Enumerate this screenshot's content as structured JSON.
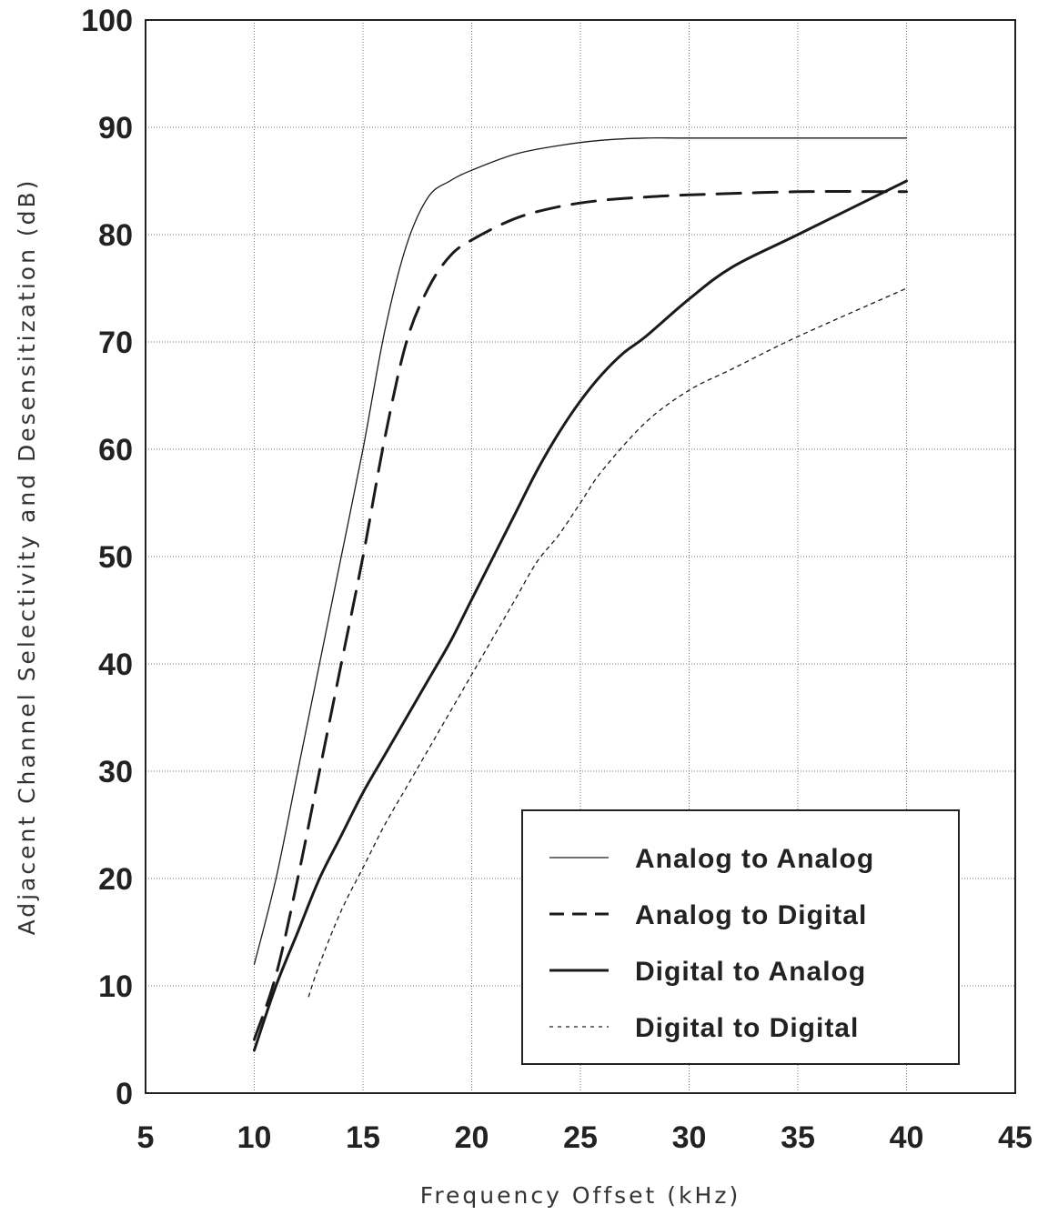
{
  "chart_data": {
    "type": "line",
    "title": "",
    "xlabel": "Frequency Offset (kHz)",
    "ylabel": "Adjacent Channel Selectivity and Desensitization (dB)",
    "xlim": [
      5,
      45
    ],
    "ylim": [
      0,
      100
    ],
    "x_ticks": [
      5,
      10,
      15,
      20,
      25,
      30,
      35,
      40,
      45
    ],
    "y_ticks": [
      0,
      10,
      20,
      30,
      40,
      50,
      60,
      70,
      80,
      90,
      100
    ],
    "grid": true,
    "legend_position": "bottom-right",
    "series": [
      {
        "name": "Analog to Analog",
        "style": "thin-solid",
        "x": [
          10,
          11,
          12,
          13,
          14,
          15,
          16,
          17,
          18,
          19,
          20,
          22,
          24,
          26,
          28,
          30,
          35,
          40
        ],
        "y": [
          12,
          20,
          30,
          40,
          50,
          60,
          71,
          79,
          83.5,
          85,
          86,
          87.5,
          88.3,
          88.8,
          89,
          89,
          89,
          89
        ]
      },
      {
        "name": "Analog to Digital",
        "style": "dashed",
        "x": [
          10,
          11,
          12,
          13,
          14,
          15,
          16,
          17,
          18,
          19,
          20,
          22,
          24,
          26,
          28,
          30,
          35,
          40
        ],
        "y": [
          5,
          11,
          20,
          30,
          40,
          50,
          61,
          70,
          75,
          78,
          79.5,
          81.5,
          82.6,
          83.2,
          83.5,
          83.7,
          84,
          84
        ]
      },
      {
        "name": "Digital to Analog",
        "style": "thick-solid",
        "x": [
          10,
          11,
          12,
          13,
          14,
          15,
          16,
          17,
          18,
          19,
          20,
          21,
          22,
          23,
          24,
          25,
          26,
          27,
          28,
          30,
          32,
          35,
          40
        ],
        "y": [
          4,
          10,
          15,
          20,
          24,
          28,
          31.5,
          35,
          38.5,
          42,
          46,
          50,
          54,
          58,
          61.5,
          64.5,
          67,
          69,
          70.5,
          74,
          77,
          80,
          85
        ]
      },
      {
        "name": "Digital to Digital",
        "style": "dotted",
        "x": [
          12.5,
          13,
          14,
          15,
          16,
          17,
          18,
          19,
          20,
          21,
          22,
          23,
          24,
          25,
          26,
          28,
          30,
          32,
          35,
          40
        ],
        "y": [
          9,
          12,
          17,
          21,
          25,
          28.5,
          32,
          35.5,
          39,
          42.5,
          46,
          49.5,
          52,
          55,
          58,
          62.5,
          65.5,
          67.5,
          70.5,
          75
        ]
      }
    ]
  }
}
